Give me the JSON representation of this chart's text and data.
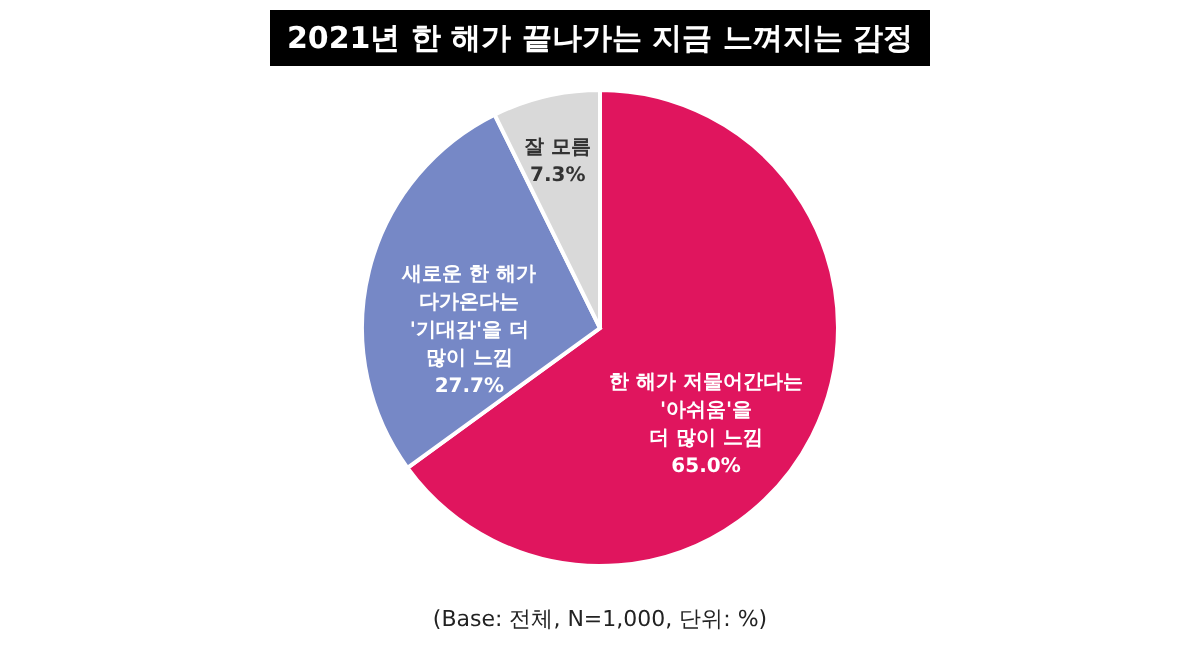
{
  "chart_data": {
    "type": "pie",
    "title": "2021년 한 해가 끝나가는 지금 느껴지는 감정",
    "categories": [
      "한 해가 저물어간다는\n'아쉬움'을\n더 많이 느낌",
      "새로운 한 해가\n다가온다는\n'기대감'을 더\n많이 느낌",
      "잘 모름"
    ],
    "values": [
      65.0,
      27.7,
      7.3
    ],
    "value_labels": [
      "65.0%",
      "27.7%",
      "7.3%"
    ],
    "colors": [
      "#e0155e",
      "#7688c6",
      "#d9d9d9"
    ],
    "annotations": [
      "(Base: 전체, N=1,000, 단위: %)"
    ]
  }
}
